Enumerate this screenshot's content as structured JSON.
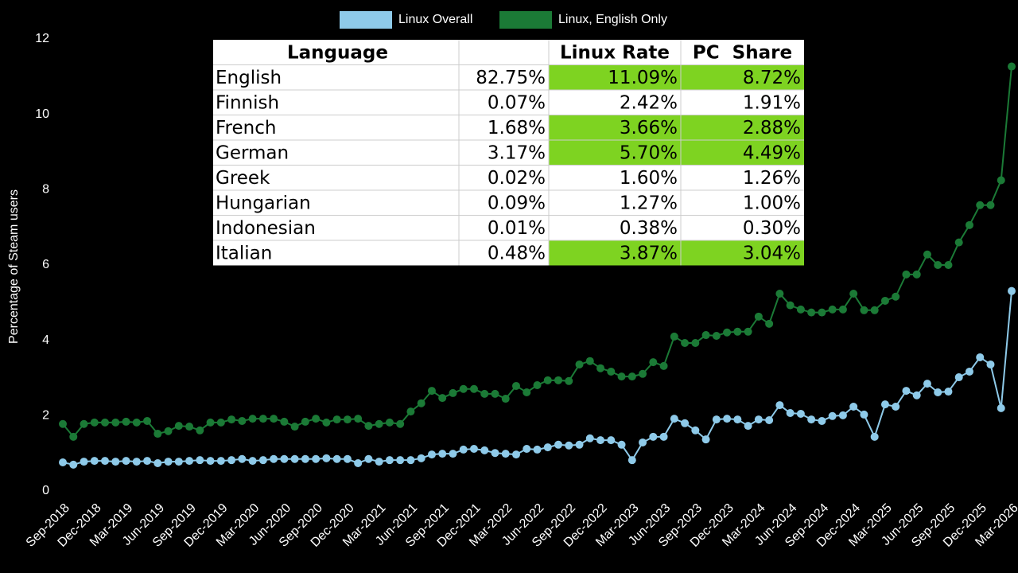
{
  "chart_data": {
    "type": "line",
    "ylabel": "Percentage of Steam users",
    "categories": [
      "Sep-2018",
      null,
      null,
      "Dec-2018",
      null,
      null,
      "Mar-2019",
      null,
      null,
      "Jun-2019",
      null,
      null,
      "Sep-2019",
      null,
      null,
      "Dec-2019",
      null,
      null,
      "Mar-2020",
      null,
      null,
      "Jun-2020",
      null,
      null,
      "Sep-2020",
      null,
      null,
      "Dec-2020",
      null,
      null,
      "Mar-2021",
      null,
      null,
      "Jun-2021",
      null,
      null,
      "Sep-2021",
      null,
      null,
      "Dec-2021",
      null,
      null,
      "Mar-2022",
      null,
      null,
      "Jun-2022",
      null,
      null,
      "Sep-2022",
      null,
      null,
      "Dec-2022",
      null,
      null,
      "Mar-2023",
      null,
      null,
      "Jun-2023",
      null,
      null,
      "Sep-2023",
      null,
      null,
      "Dec-2023",
      null,
      null,
      "Mar-2024",
      null,
      null,
      "Jun-2024",
      null,
      null,
      "Sep-2024",
      null,
      null,
      "Dec-2024",
      null,
      null,
      "Mar-2025",
      null,
      null,
      "Jun-2025",
      null,
      null,
      "Sep-2025",
      null,
      null,
      "Dec-2025",
      null,
      null,
      "Mar-2026"
    ],
    "series": [
      {
        "name": "Linux Overall",
        "color": "#8ecae9",
        "values": [
          0.76,
          0.7,
          0.78,
          0.8,
          0.8,
          0.78,
          0.8,
          0.78,
          0.8,
          0.74,
          0.78,
          0.78,
          0.8,
          0.82,
          0.8,
          0.8,
          0.82,
          0.85,
          0.8,
          0.82,
          0.85,
          0.85,
          0.85,
          0.85,
          0.85,
          0.87,
          0.85,
          0.85,
          0.74,
          0.85,
          0.78,
          0.82,
          0.82,
          0.82,
          0.87,
          0.97,
          0.99,
          0.99,
          1.1,
          1.12,
          1.08,
          1.01,
          0.99,
          0.97,
          1.12,
          1.1,
          1.16,
          1.23,
          1.21,
          1.23,
          1.4,
          1.35,
          1.35,
          1.23,
          0.82,
          1.29,
          1.44,
          1.44,
          1.92,
          1.8,
          1.61,
          1.37,
          1.9,
          1.92,
          1.9,
          1.73,
          1.9,
          1.88,
          2.28,
          2.07,
          2.05,
          1.9,
          1.86,
          1.99,
          2.01,
          2.24,
          2.03,
          1.44,
          2.3,
          2.24,
          2.66,
          2.54,
          2.85,
          2.62,
          2.64,
          3.02,
          3.17,
          3.55,
          3.36,
          2.2,
          5.31
        ]
      },
      {
        "name": "Linux, English Only",
        "color": "#1b7a36",
        "values": [
          1.78,
          1.44,
          1.78,
          1.82,
          1.82,
          1.82,
          1.84,
          1.82,
          1.86,
          1.52,
          1.59,
          1.73,
          1.71,
          1.61,
          1.82,
          1.82,
          1.9,
          1.86,
          1.92,
          1.92,
          1.92,
          1.84,
          1.71,
          1.84,
          1.92,
          1.82,
          1.9,
          1.9,
          1.92,
          1.73,
          1.78,
          1.82,
          1.78,
          2.11,
          2.33,
          2.66,
          2.47,
          2.6,
          2.71,
          2.71,
          2.58,
          2.58,
          2.45,
          2.79,
          2.62,
          2.81,
          2.94,
          2.94,
          2.92,
          3.36,
          3.45,
          3.26,
          3.17,
          3.04,
          3.04,
          3.11,
          3.42,
          3.32,
          4.1,
          3.93,
          3.93,
          4.14,
          4.12,
          4.21,
          4.23,
          4.23,
          4.63,
          4.44,
          5.24,
          4.93,
          4.82,
          4.74,
          4.74,
          4.82,
          4.82,
          5.24,
          4.8,
          4.8,
          5.05,
          5.16,
          5.75,
          5.75,
          6.28,
          6.0,
          6.0,
          6.6,
          7.06,
          7.59,
          7.59,
          8.25,
          11.27
        ]
      }
    ],
    "ylim": [
      0,
      12
    ],
    "yticks": [
      0,
      2,
      4,
      6,
      8,
      10,
      12
    ],
    "grid": false,
    "legend": "top"
  },
  "table": {
    "header": {
      "language": "Language",
      "rate": "Linux Rate",
      "share": "PC  Share"
    },
    "highlight_color": "#7ed321",
    "rows": [
      {
        "cells": [
          "English",
          "82.75%",
          "11.09%",
          "8.72%"
        ],
        "highlight": true
      },
      {
        "cells": [
          "Finnish",
          "0.07%",
          "2.42%",
          "1.91%"
        ],
        "highlight": false
      },
      {
        "cells": [
          "French",
          "1.68%",
          "3.66%",
          "2.88%"
        ],
        "highlight": true
      },
      {
        "cells": [
          "German",
          "3.17%",
          "5.70%",
          "4.49%"
        ],
        "highlight": true
      },
      {
        "cells": [
          "Greek",
          "0.02%",
          "1.60%",
          "1.26%"
        ],
        "highlight": false
      },
      {
        "cells": [
          "Hungarian",
          "0.09%",
          "1.27%",
          "1.00%"
        ],
        "highlight": false
      },
      {
        "cells": [
          "Indonesian",
          "0.01%",
          "0.38%",
          "0.30%"
        ],
        "highlight": false
      },
      {
        "cells": [
          "Italian",
          "0.48%",
          "3.87%",
          "3.04%"
        ],
        "highlight": true
      }
    ]
  }
}
